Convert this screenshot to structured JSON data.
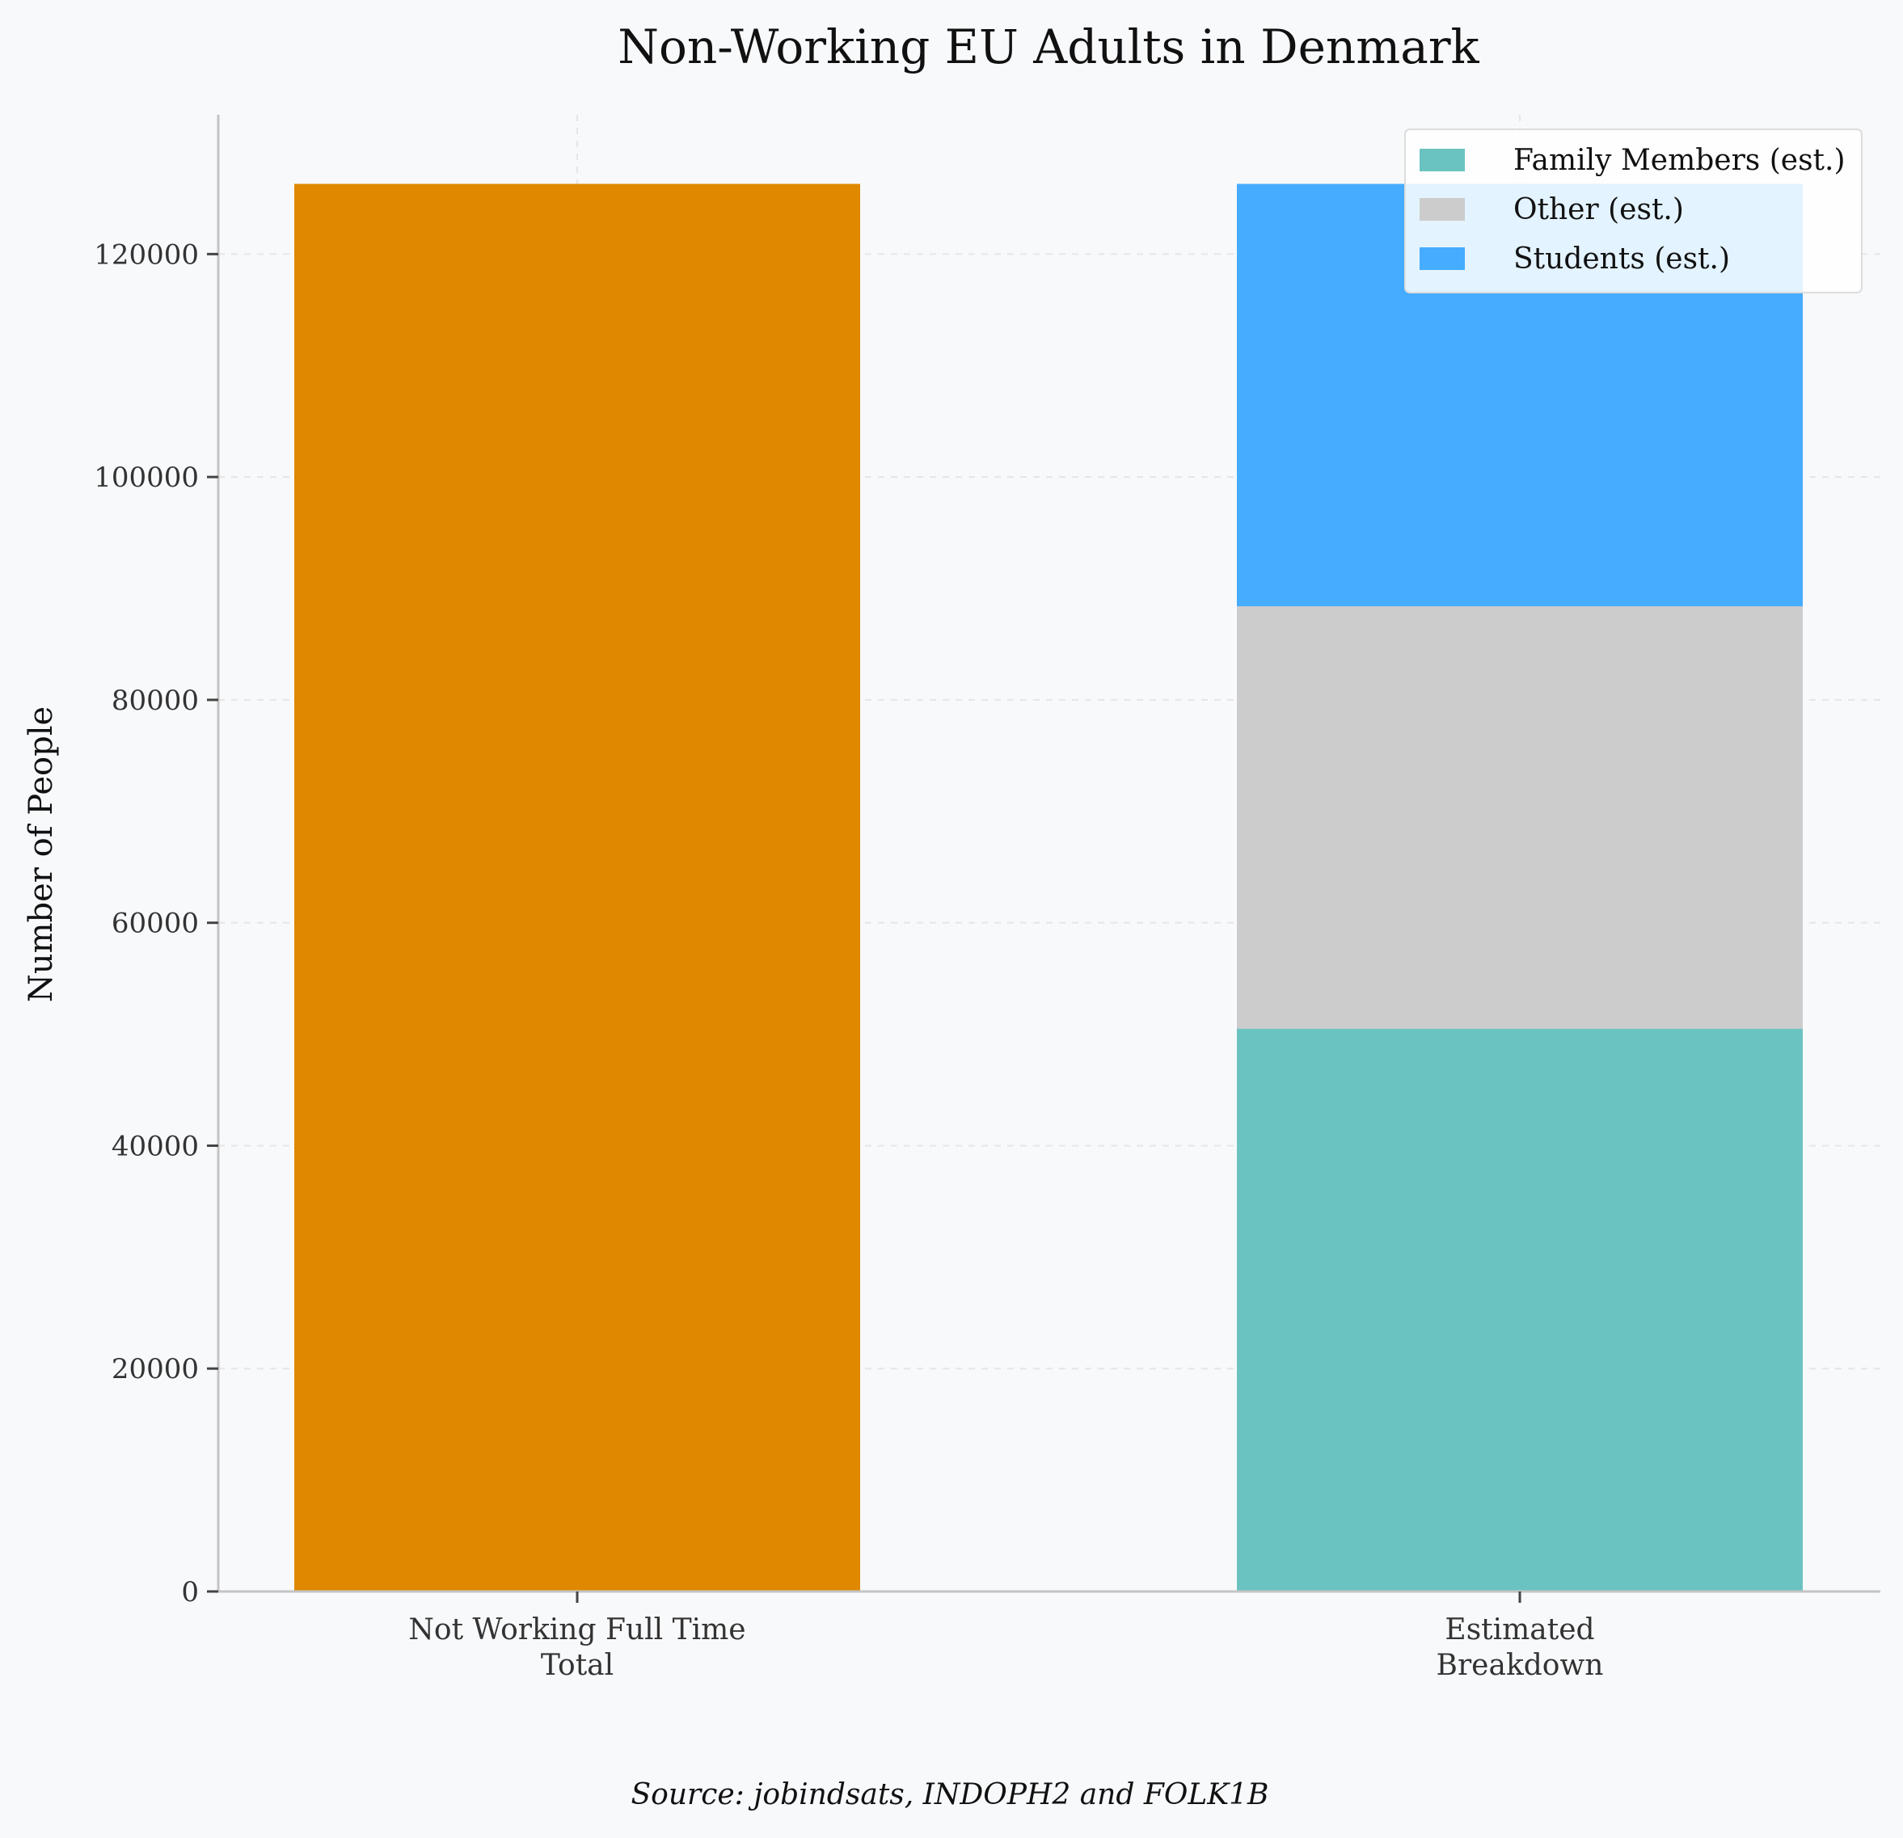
{
  "chart_data": {
    "type": "bar",
    "title": "Non-Working EU Adults in Denmark",
    "xlabel": "",
    "ylabel": "Number of People",
    "ylim": [
      0,
      132500
    ],
    "yticks": [
      0,
      20000,
      40000,
      60000,
      80000,
      100000,
      120000
    ],
    "categories": [
      [
        "Not Working Full Time",
        "Total"
      ],
      [
        "Estimated",
        "Breakdown"
      ]
    ],
    "total_bar": {
      "category_index": 0,
      "value": 126300,
      "color": "#df8800"
    },
    "stacked_series": [
      {
        "name": "Family Members (est.)",
        "category_index": 1,
        "value": 50500,
        "color": "#6bc3c1"
      },
      {
        "name": "Other (est.)",
        "category_index": 1,
        "value": 37900,
        "color": "#cccccc"
      },
      {
        "name": "Students (est.)",
        "category_index": 1,
        "value": 37900,
        "color": "#45acff"
      }
    ],
    "legend": {
      "placement": "top-right",
      "order": [
        "Family Members (est.)",
        "Other (est.)",
        "Students (est.)"
      ]
    },
    "grid": true,
    "source": "Source: jobindsats, INDOPH2 and FOLK1B"
  }
}
